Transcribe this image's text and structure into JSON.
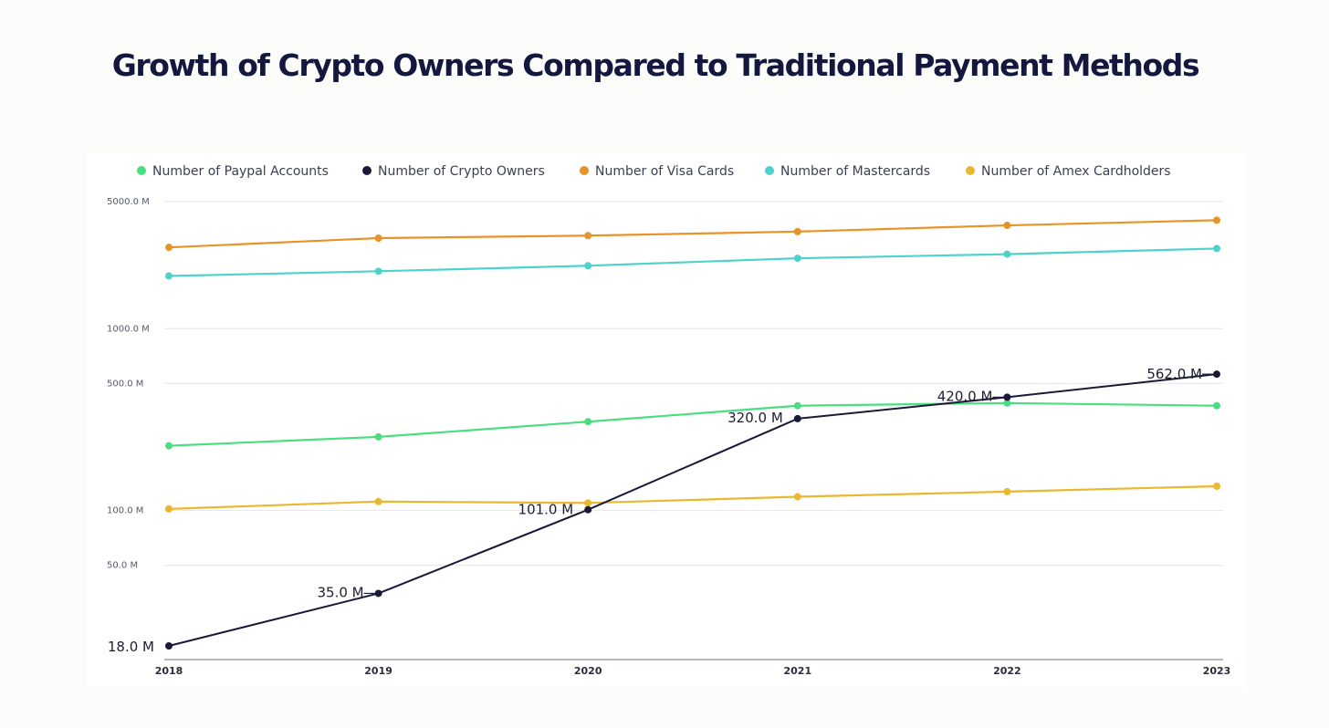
{
  "title": "Growth of Crypto Owners Compared to Traditional Payment Methods",
  "chart_data": {
    "type": "line",
    "title": "Growth of Crypto Owners Compared to Traditional Payment Methods",
    "xlabel": "",
    "ylabel": "",
    "y_scale": "log",
    "grid": true,
    "legend_position": "top",
    "categories": [
      "2018",
      "2019",
      "2020",
      "2021",
      "2022",
      "2023"
    ],
    "y_ticks": [
      {
        "value": 5000,
        "label": "5000.0 M"
      },
      {
        "value": 1000,
        "label": "1000.0 M"
      },
      {
        "value": 500,
        "label": "500.0 M"
      },
      {
        "value": 100,
        "label": "100.0 M"
      },
      {
        "value": 50,
        "label": "50.0 M"
      }
    ],
    "ylim": [
      18,
      5000
    ],
    "series": [
      {
        "name": "Number of Paypal Accounts",
        "color": "#4ade80",
        "values": [
          227,
          254,
          308,
          377,
          390,
          377
        ],
        "labels": null
      },
      {
        "name": "Number of Crypto Owners",
        "color": "#1a1a38",
        "values": [
          18,
          35,
          101,
          320,
          420,
          562
        ],
        "labels": [
          "18.0 M",
          "35.0 M",
          "101.0 M",
          "320.0 M",
          "420.0 M",
          "562.0 M"
        ]
      },
      {
        "name": "Number of Visa Cards",
        "color": "#e8922a",
        "values": [
          2800,
          3150,
          3250,
          3420,
          3700,
          3950
        ],
        "labels": null
      },
      {
        "name": "Number of Mastercards",
        "color": "#4fd1cd",
        "values": [
          1950,
          2070,
          2220,
          2440,
          2570,
          2760
        ],
        "labels": null
      },
      {
        "name": "Number of Amex Cardholders",
        "color": "#eab730",
        "values": [
          102,
          112,
          110,
          119,
          127,
          136
        ],
        "labels": null
      }
    ]
  }
}
